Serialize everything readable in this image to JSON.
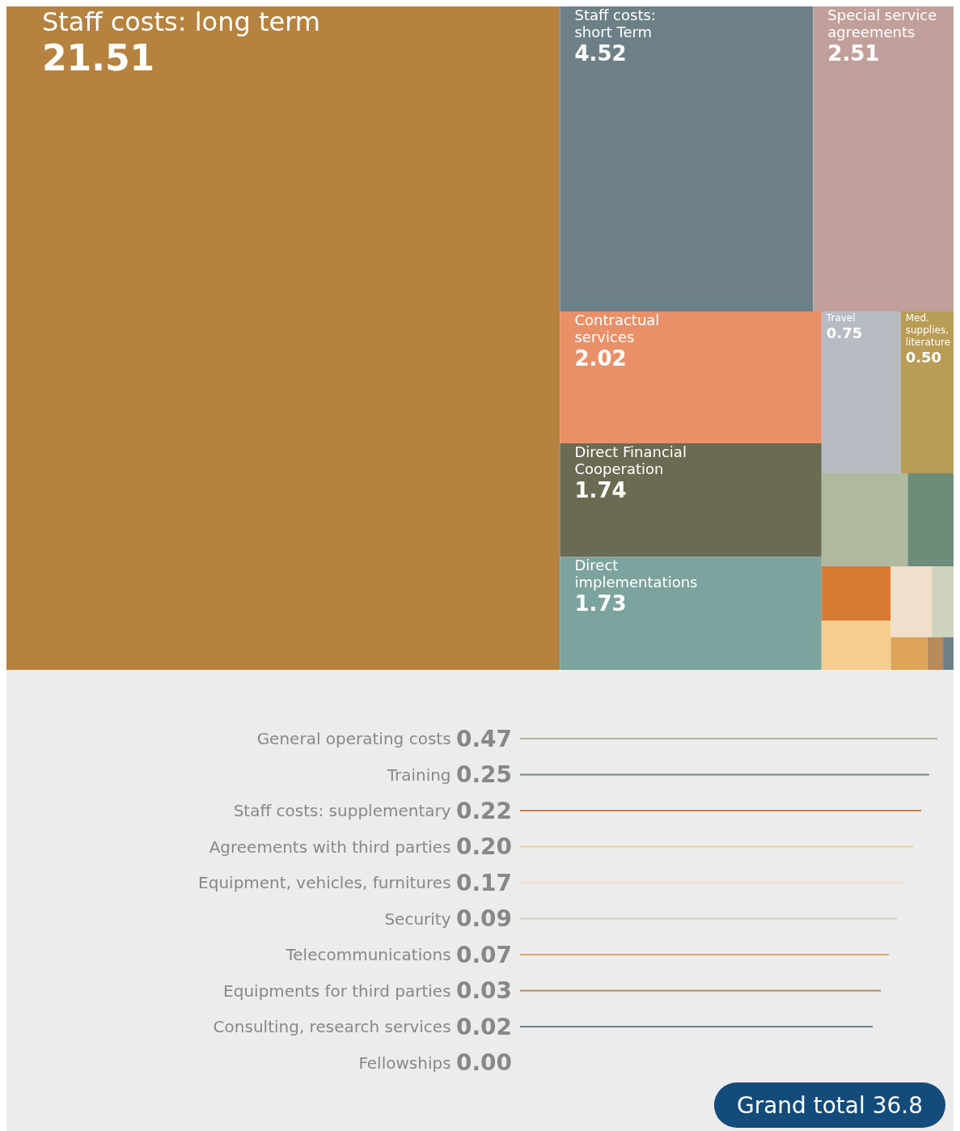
{
  "chart_data": {
    "type": "other",
    "categories": [
      "Staff costs: long term",
      "Staff costs: short Term",
      "Special service agreements",
      "Contractual services",
      "Direct Financial Cooperation",
      "Direct implementations",
      "Travel",
      "Med. supplies, literature",
      "General operating costs",
      "Training",
      "Staff costs: supplementary",
      "Agreements with third parties",
      "Equipment, vehicles, furnitures",
      "Security",
      "Telecommunications",
      "Equipments for third parties",
      "Consulting, research services",
      "Fellowships"
    ],
    "values": [
      21.51,
      4.52,
      2.51,
      2.02,
      1.74,
      1.73,
      0.75,
      0.5,
      0.47,
      0.25,
      0.22,
      0.2,
      0.17,
      0.09,
      0.07,
      0.03,
      0.02,
      0.0
    ],
    "value_labels": [
      "21.51",
      "4.52",
      "2.51",
      "2.02",
      "1.74",
      "1.73",
      "0.75",
      "0.50",
      "0.47",
      "0.25",
      "0.22",
      "0.20",
      "0.17",
      "0.09",
      "0.07",
      "0.03",
      "0.02",
      "0.00"
    ],
    "colors": [
      "#b5823f",
      "#6d8087",
      "#c1a09b",
      "#ea9069",
      "#6b6a52",
      "#7ca39e",
      "#b9bbc4",
      "#b99c55",
      "#aeb99f",
      "#6e8c7a",
      "#d97a34",
      "#f5cd90",
      "#f0dfcb",
      "#ced3bd",
      "#dea55a",
      "#b88a5c",
      "#6d8087",
      "#999999"
    ],
    "annotations": [
      "Grand total 36.8"
    ]
  }
}
